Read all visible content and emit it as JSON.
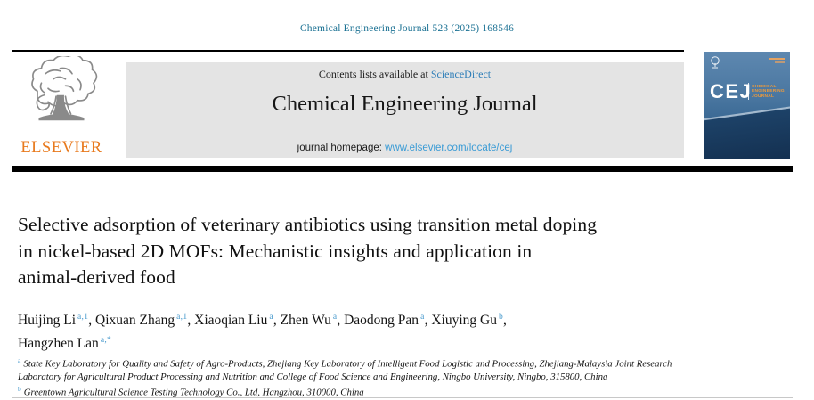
{
  "page": {
    "citation": "Chemical Engineering Journal 523 (2025) 168546"
  },
  "publisher": {
    "wordmark": "ELSEVIER"
  },
  "banner": {
    "contents_prefix": "Contents lists available at ",
    "contents_link": "ScienceDirect",
    "journal_title": "Chemical Engineering Journal",
    "homepage_prefix": "journal homepage: ",
    "homepage_link": "www.elsevier.com/locate/cej"
  },
  "cover": {
    "abbrev": "CEJ",
    "title_lines": [
      "CHEMICAL",
      "ENGINEERING",
      "JOURNAL"
    ]
  },
  "article": {
    "title_lines": [
      "Selective adsorption of veterinary antibiotics using transition metal doping",
      "in nickel-based 2D MOFs: Mechanistic insights and application in",
      "animal-derived food"
    ],
    "authors": [
      {
        "name": "Huijing Li",
        "sup": "a,1"
      },
      {
        "name": "Qixuan Zhang",
        "sup": "a,1"
      },
      {
        "name": "Xiaoqian Liu",
        "sup": "a"
      },
      {
        "name": "Zhen Wu",
        "sup": "a"
      },
      {
        "name": "Daodong Pan",
        "sup": "a"
      },
      {
        "name": "Xiuying Gu",
        "sup": "b"
      },
      {
        "name": "Hangzhen Lan",
        "sup": "a,*"
      }
    ],
    "affiliations": [
      {
        "marker": "a",
        "text": "State Key Laboratory for Quality and Safety of Agro-Products, Zhejiang Key Laboratory of Intelligent Food Logistic and Processing, Zhejiang-Malaysia Joint Research Laboratory for Agricultural Product Processing and Nutrition and College of Food Science and Engineering, Ningbo University, Ningbo, 315800, China"
      },
      {
        "marker": "b",
        "text": "Greentown Agricultural Science Testing Technology Co., Ltd, Hangzhou, 310000, China"
      }
    ]
  },
  "colors": {
    "citation_teal": "#1b7193",
    "sciencedirect_link_blue": "#2e7eb8",
    "homepage_link_blue": "#3a9bd5",
    "superscript_blue": "#4598cc",
    "elsevier_orange": "#e87a1e",
    "cover_title_orange": "#f29b38",
    "banner_gray": "#e4e4e4",
    "rule_black": "#000000"
  }
}
